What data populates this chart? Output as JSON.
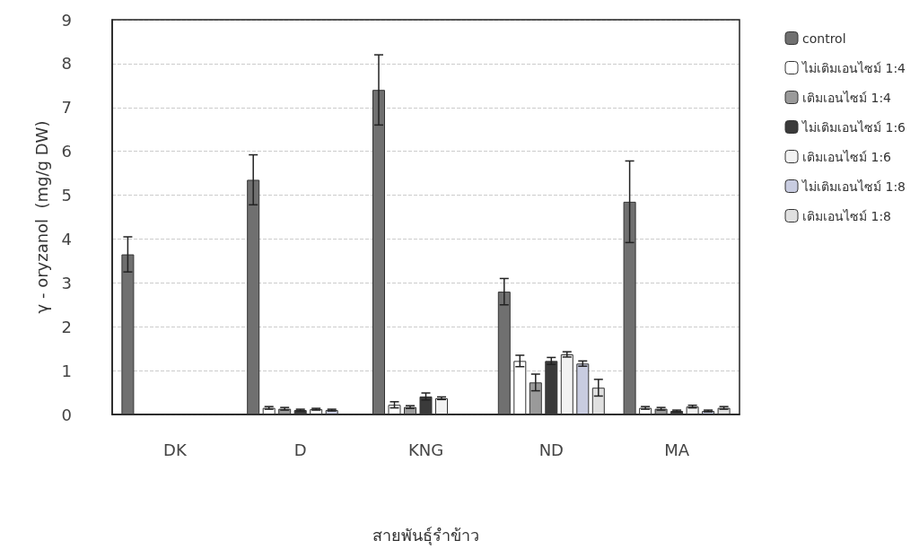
{
  "chart_data": {
    "type": "bar",
    "xlabel": "สายพันธุ์รำข้าว",
    "ylabel": "γ - oryzanol  (mg/g DW)",
    "categories": [
      "DK",
      "D",
      "KNG",
      "ND",
      "MA"
    ],
    "series": [
      {
        "name": "control",
        "color": "#707070",
        "values": [
          3.65,
          5.35,
          7.4,
          2.8,
          4.85
        ],
        "errors": [
          0.4,
          0.57,
          0.8,
          0.3,
          0.93
        ]
      },
      {
        "name": "ไม่เติมเอนไซม์ 1:4",
        "color": "#ffffff",
        "values": [
          null,
          0.15,
          0.22,
          1.22,
          0.15
        ],
        "errors": [
          null,
          0.03,
          0.07,
          0.13,
          0.03
        ]
      },
      {
        "name": "เติมเอนไซม์ 1:4",
        "color": "#9a9a9a",
        "values": [
          null,
          0.13,
          0.17,
          0.73,
          0.13
        ],
        "errors": [
          null,
          0.03,
          0.03,
          0.19,
          0.03
        ]
      },
      {
        "name": "ไม่เติมเอนไซม์ 1:6",
        "color": "#3a3a3a",
        "values": [
          null,
          0.1,
          0.41,
          1.22,
          0.08
        ],
        "errors": [
          null,
          0.02,
          0.08,
          0.08,
          0.02
        ]
      },
      {
        "name": "เติมเอนไซม์ 1:6",
        "color": "#f2f2f2",
        "values": [
          null,
          0.12,
          0.37,
          1.37,
          0.18
        ],
        "errors": [
          null,
          0.02,
          0.03,
          0.06,
          0.03
        ]
      },
      {
        "name": "ไม่เติมเอนไซม์ 1:8",
        "color": "#c8cce0",
        "values": [
          null,
          0.1,
          null,
          1.16,
          0.08
        ],
        "errors": [
          null,
          0.02,
          null,
          0.06,
          0.02
        ]
      },
      {
        "name": "เติมเอนไซม์ 1:8",
        "color": "#e0e0e0",
        "values": [
          null,
          null,
          null,
          0.61,
          0.15
        ],
        "errors": [
          null,
          null,
          null,
          0.19,
          0.03
        ]
      }
    ],
    "ylim": [
      0,
      9
    ],
    "yticks": [
      0,
      1,
      2,
      3,
      4,
      5,
      6,
      7,
      8,
      9
    ],
    "grid": "y",
    "legend": "right"
  }
}
